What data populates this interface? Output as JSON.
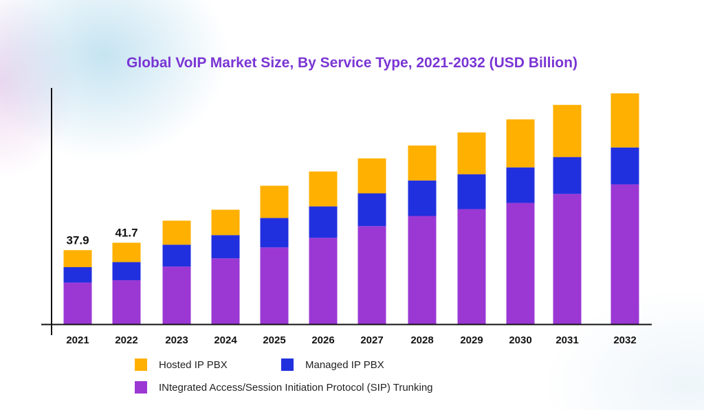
{
  "chart_data": {
    "type": "bar",
    "stacked": true,
    "title": "Global VoIP Market Size, By Service Type, 2021-2032 (USD Billion)",
    "xlabel": "",
    "ylabel": "",
    "ylim": [
      0,
      121
    ],
    "grid": false,
    "legend_position": "bottom",
    "categories": [
      "2021",
      "2022",
      "2023",
      "2024",
      "2025",
      "2026",
      "2027",
      "2028",
      "2029",
      "2030",
      "2031",
      "2032"
    ],
    "series": [
      {
        "name": "INtegrated Access/Session Initiation Protocol (SIP) Trunking",
        "color": "#9b38d4",
        "values": [
          21.3,
          22.5,
          29.5,
          33.7,
          39.3,
          44.2,
          50.2,
          55.4,
          58.9,
          62.1,
          66.7,
          71.6
        ]
      },
      {
        "name": "Managed IP PBX",
        "color": "#2130de",
        "values": [
          7.9,
          9.3,
          11.2,
          11.9,
          15.1,
          16.1,
          16.8,
          18.2,
          17.9,
          18.2,
          18.9,
          18.9
        ]
      },
      {
        "name": "Hosted IP PBX",
        "color": "#ffb000",
        "values": [
          8.7,
          9.9,
          12.3,
          13.0,
          16.5,
          17.9,
          17.9,
          17.9,
          21.4,
          24.6,
          26.7,
          27.7
        ]
      }
    ],
    "data_labels": [
      {
        "category": "2021",
        "text": "37.9"
      },
      {
        "category": "2022",
        "text": "41.7"
      }
    ]
  },
  "legend": {
    "hosted": "Hosted IP PBX",
    "managed": "Managed IP PBX",
    "sip": "INtegrated Access/Session Initiation Protocol (SIP) Trunking"
  }
}
